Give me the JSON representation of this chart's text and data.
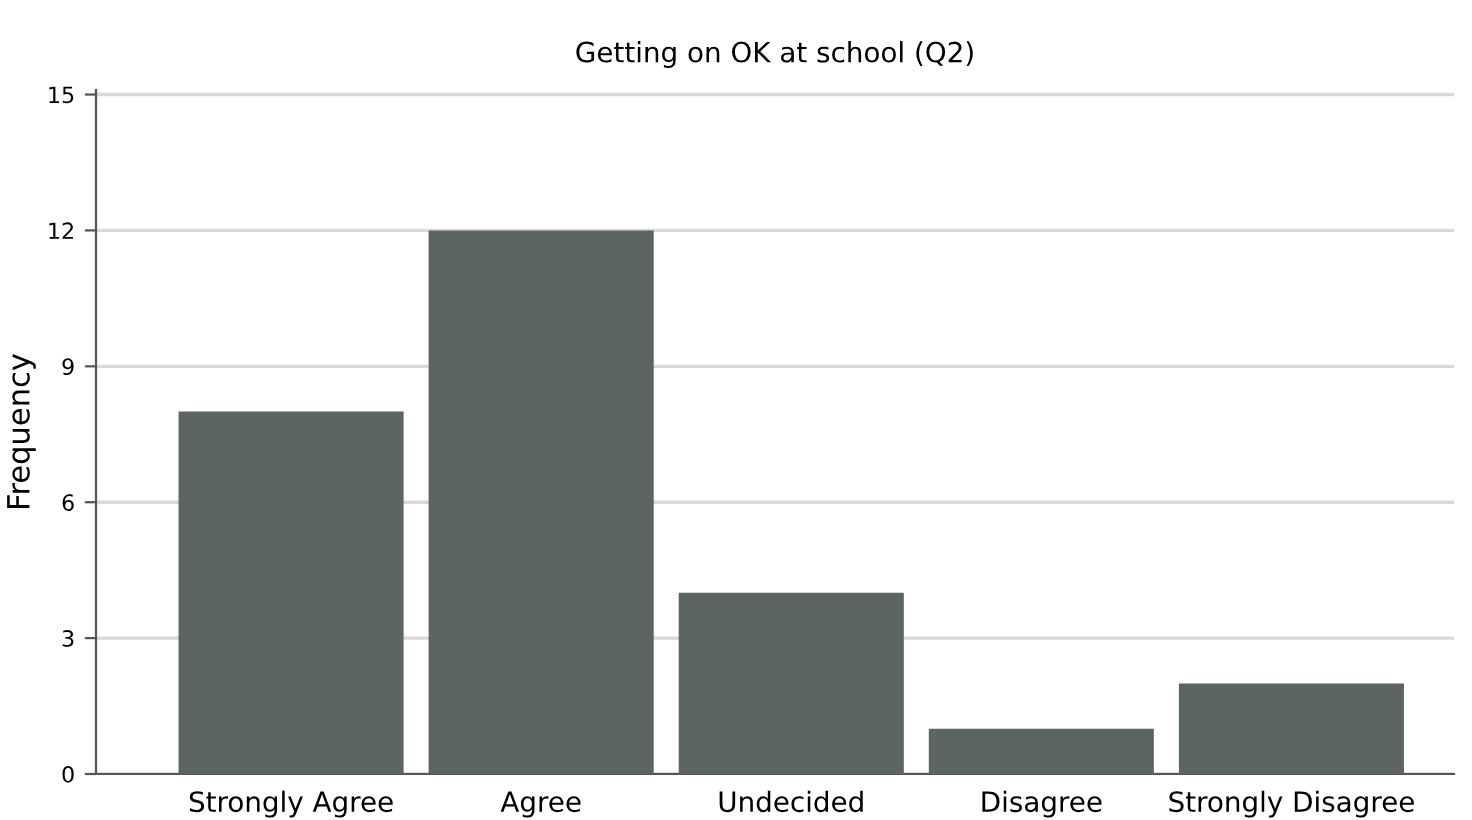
{
  "chart_data": {
    "type": "bar",
    "title": "Getting on OK at school (Q2)",
    "ylabel": "Frequency",
    "categories": [
      "Strongly Agree",
      "Agree",
      "Undecided",
      "Disagree",
      "Strongly Disagree"
    ],
    "values": [
      8,
      12,
      4,
      1,
      2
    ],
    "color": "#5c655f",
    "ylim": [
      0,
      15.1
    ],
    "yticks": [
      0,
      3,
      6,
      9,
      12,
      15
    ],
    "grid": "y",
    "legend": false
  }
}
